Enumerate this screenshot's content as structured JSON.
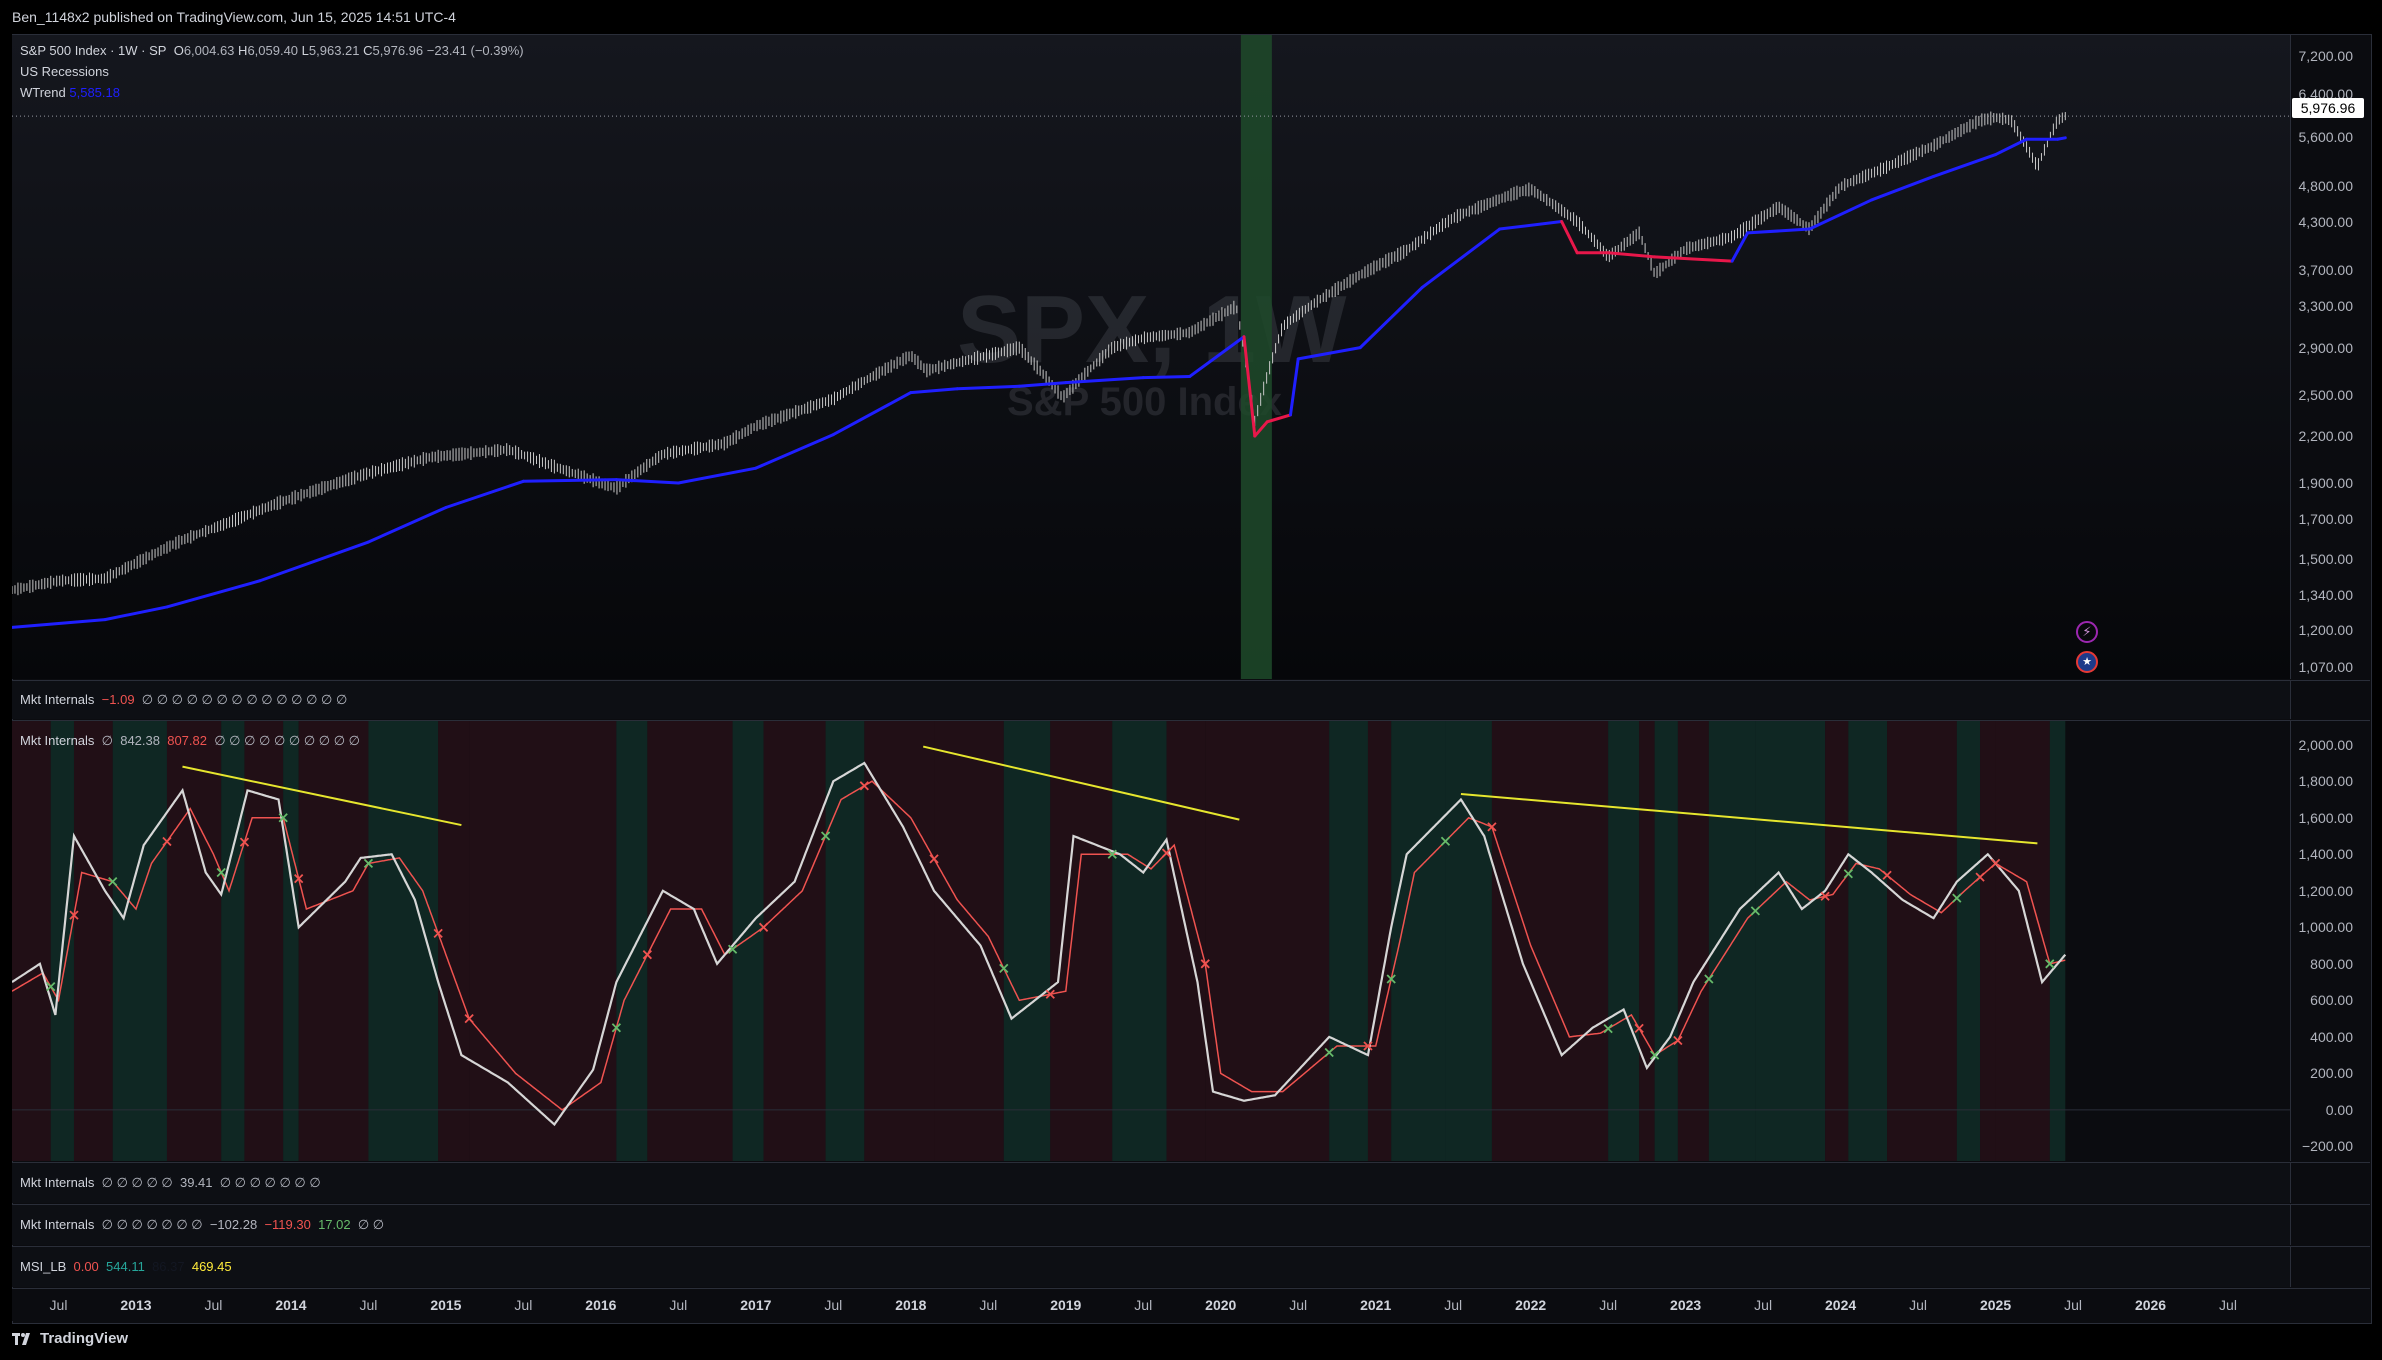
{
  "header": {
    "published": "Ben_1148x2 published on TradingView.com, Jun 15, 2025 14:51 UTC-4"
  },
  "main_legend": {
    "symbol": "S&P 500 Index · 1W · SP",
    "o_label": "O",
    "o": "6,004.63",
    "h_label": "H",
    "h": "6,059.40",
    "l_label": "L",
    "l": "5,963.21",
    "c_label": "C",
    "c": "5,976.96",
    "change": "−23.41 (−0.39%)",
    "recessions": "US Recessions",
    "wtrend_label": "WTrend",
    "wtrend_value": "5,585.18"
  },
  "watermark": {
    "ticker": "SPX, 1W",
    "name": "S&P 500 Index"
  },
  "price_badge": "5,976.96",
  "icons": {
    "flash": "lightning-icon",
    "flag": "us-flag-icon"
  },
  "colors": {
    "price_bars": "#c8c8c8",
    "wtrend_up": "#1f1fff",
    "wtrend_down": "#e8174a",
    "recession": "#1f4a2a",
    "osc_white": "#d6d6d6",
    "osc_red": "#ef5350",
    "trendline": "#e6e62e",
    "bull_bg": "#12302a",
    "bear_bg": "#2a1018"
  },
  "panes": {
    "mkt1": {
      "title": "Mkt Internals",
      "value": "−1.09",
      "nulls": "∅ ∅ ∅ ∅ ∅ ∅ ∅ ∅ ∅ ∅ ∅ ∅ ∅ ∅"
    },
    "mkt2": {
      "title": "Mkt Internals",
      "pre": "∅",
      "v1": "842.38",
      "v2": "807.82",
      "nulls": "∅ ∅ ∅ ∅ ∅ ∅ ∅ ∅ ∅ ∅"
    },
    "mkt3": {
      "title": "Mkt Internals",
      "pre": "∅ ∅ ∅ ∅ ∅",
      "v1": "39.41",
      "nulls": "∅ ∅ ∅ ∅ ∅ ∅ ∅"
    },
    "mkt4": {
      "title": "Mkt Internals",
      "pre": "∅ ∅ ∅ ∅ ∅ ∅ ∅",
      "v1": "−102.28",
      "v2": "−119.30",
      "v3": "17.02",
      "nulls": "∅ ∅"
    },
    "msi": {
      "title": "MSI_LB",
      "v1": "0.00",
      "v2": "544.11",
      "v3": "86.37",
      "v4": "469.45"
    }
  },
  "footer": {
    "brand": "TradingView"
  },
  "chart_data": [
    {
      "type": "line",
      "title": "S&P 500 Index · 1W · SP",
      "scale": "log",
      "yticks": [
        "7,200.00",
        "6,400.00",
        "5,600.00",
        "4,800.00",
        "4,300.00",
        "3,700.00",
        "3,300.00",
        "2,900.00",
        "2,500.00",
        "2,200.00",
        "1,900.00",
        "1,700.00",
        "1,500.00",
        "1,340.00",
        "1,200.00",
        "1,070.00"
      ],
      "ytick_values": [
        7200,
        6400,
        5600,
        4800,
        4300,
        3700,
        3300,
        2900,
        2500,
        2200,
        1900,
        1700,
        1500,
        1340,
        1200,
        1070
      ],
      "ylim": [
        1030,
        7700
      ],
      "xlim": [
        2012.2,
        2026.9
      ],
      "recession": [
        2020.13,
        2020.33
      ],
      "series": [
        {
          "name": "S&P 500 Index",
          "x": [
            2012.2,
            2012.5,
            2012.8,
            2013.0,
            2013.3,
            2013.6,
            2013.9,
            2014.1,
            2014.5,
            2014.9,
            2015.4,
            2015.7,
            2016.0,
            2016.1,
            2016.4,
            2016.8,
            2017.0,
            2017.5,
            2018.0,
            2018.1,
            2018.7,
            2018.98,
            2019.3,
            2019.5,
            2019.8,
            2020.1,
            2020.22,
            2020.4,
            2020.6,
            2020.9,
            2021.2,
            2021.5,
            2021.9,
            2022.0,
            2022.3,
            2022.5,
            2022.7,
            2022.8,
            2023.0,
            2023.3,
            2023.6,
            2023.8,
            2024.0,
            2024.3,
            2024.6,
            2024.9,
            2025.0,
            2025.1,
            2025.27,
            2025.4,
            2025.45
          ],
          "y": [
            1360,
            1400,
            1410,
            1480,
            1590,
            1680,
            1780,
            1840,
            1960,
            2060,
            2110,
            2000,
            1900,
            1870,
            2080,
            2150,
            2270,
            2470,
            2830,
            2700,
            2900,
            2480,
            2900,
            2990,
            3040,
            3300,
            2300,
            3100,
            3330,
            3640,
            3930,
            4350,
            4700,
            4760,
            4300,
            3850,
            4150,
            3650,
            3950,
            4100,
            4500,
            4200,
            4800,
            5100,
            5450,
            5900,
            5950,
            5900,
            5100,
            5900,
            5976.96
          ]
        },
        {
          "name": "WTrend",
          "x": [
            2012.2,
            2012.8,
            2013.2,
            2013.8,
            2014.5,
            2015.0,
            2015.5,
            2016.1,
            2016.5,
            2017.0,
            2017.5,
            2018.0,
            2018.3,
            2018.7,
            2019.0,
            2019.5,
            2019.8,
            2020.15,
            2020.22,
            2020.3,
            2020.45,
            2020.5,
            2020.9,
            2021.3,
            2021.8,
            2022.2,
            2022.3,
            2022.5,
            2022.8,
            2023.3,
            2023.4,
            2023.8,
            2024.2,
            2024.6,
            2025.0,
            2025.2,
            2025.4,
            2025.45
          ],
          "y": [
            1210,
            1240,
            1290,
            1400,
            1580,
            1760,
            1910,
            1920,
            1900,
            1990,
            2210,
            2520,
            2550,
            2570,
            2600,
            2640,
            2650,
            3000,
            2200,
            2300,
            2350,
            2800,
            2900,
            3500,
            4200,
            4300,
            3900,
            3900,
            3850,
            3800,
            4150,
            4200,
            4600,
            4950,
            5300,
            5560,
            5560,
            5585.18
          ]
        }
      ]
    },
    {
      "type": "line",
      "title": "Mkt Internals",
      "yticks": [
        "2,000.00",
        "1,800.00",
        "1,600.00",
        "1,400.00",
        "1,200.00",
        "1,000.00",
        "800.00",
        "600.00",
        "400.00",
        "200.00",
        "0.00",
        "−200.00"
      ],
      "ytick_values": [
        2000,
        1800,
        1600,
        1400,
        1200,
        1000,
        800,
        600,
        400,
        200,
        0,
        -200
      ],
      "ylim": [
        -280,
        2130
      ],
      "xlim": [
        2012.2,
        2026.9
      ],
      "series": [
        {
          "name": "",
          "x": [
            2012.2,
            2012.38,
            2012.48,
            2012.6,
            2012.8,
            2012.92,
            2013.05,
            2013.3,
            2013.45,
            2013.55,
            2013.72,
            2013.92,
            2014.05,
            2014.35,
            2014.45,
            2014.65,
            2014.8,
            2014.95,
            2015.1,
            2015.4,
            2015.7,
            2015.95,
            2016.1,
            2016.4,
            2016.6,
            2016.75,
            2017.0,
            2017.25,
            2017.5,
            2017.7,
            2017.95,
            2018.15,
            2018.25,
            2018.45,
            2018.65,
            2018.95,
            2019.05,
            2019.35,
            2019.5,
            2019.65,
            2019.85,
            2019.95,
            2020.15,
            2020.35,
            2020.7,
            2020.95,
            2021.1,
            2021.2,
            2021.55,
            2021.7,
            2021.95,
            2022.2,
            2022.4,
            2022.6,
            2022.75,
            2022.9,
            2023.05,
            2023.35,
            2023.6,
            2023.75,
            2023.9,
            2024.05,
            2024.2,
            2024.4,
            2024.6,
            2024.75,
            2024.95,
            2025.15,
            2025.3,
            2025.45
          ],
          "y": [
            700,
            800,
            520,
            1500,
            1200,
            1050,
            1450,
            1750,
            1300,
            1180,
            1750,
            1700,
            1000,
            1250,
            1380,
            1400,
            1150,
            700,
            300,
            150,
            -80,
            220,
            700,
            1200,
            1100,
            800,
            1050,
            1250,
            1800,
            1900,
            1550,
            1200,
            1100,
            900,
            500,
            700,
            1500,
            1400,
            1300,
            1480,
            700,
            100,
            50,
            80,
            400,
            300,
            1000,
            1400,
            1700,
            1500,
            800,
            300,
            450,
            550,
            230,
            400,
            700,
            1100,
            1300,
            1100,
            1200,
            1400,
            1300,
            1150,
            1050,
            1250,
            1400,
            1200,
            700,
            850
          ]
        },
        {
          "name": "",
          "x": [
            2012.2,
            2012.4,
            2012.5,
            2012.65,
            2012.85,
            2013.0,
            2013.1,
            2013.35,
            2013.5,
            2013.6,
            2013.75,
            2013.95,
            2014.1,
            2014.4,
            2014.5,
            2014.7,
            2014.85,
            2015.0,
            2015.15,
            2015.45,
            2015.75,
            2016.0,
            2016.15,
            2016.45,
            2016.65,
            2016.8,
            2017.05,
            2017.3,
            2017.55,
            2017.75,
            2018.0,
            2018.2,
            2018.3,
            2018.5,
            2018.7,
            2019.0,
            2019.1,
            2019.4,
            2019.55,
            2019.7,
            2019.9,
            2020.0,
            2020.2,
            2020.4,
            2020.75,
            2021.0,
            2021.15,
            2021.25,
            2021.6,
            2021.75,
            2022.0,
            2022.25,
            2022.45,
            2022.65,
            2022.8,
            2022.95,
            2023.1,
            2023.4,
            2023.65,
            2023.8,
            2023.95,
            2024.1,
            2024.25,
            2024.45,
            2024.65,
            2024.8,
            2025.0,
            2025.2,
            2025.35,
            2025.45
          ],
          "y": [
            650,
            750,
            600,
            1300,
            1250,
            1100,
            1350,
            1650,
            1400,
            1200,
            1600,
            1600,
            1100,
            1200,
            1350,
            1380,
            1200,
            850,
            500,
            200,
            0,
            150,
            600,
            1100,
            1100,
            850,
            1000,
            1200,
            1700,
            1800,
            1600,
            1300,
            1150,
            950,
            600,
            650,
            1400,
            1400,
            1320,
            1450,
            800,
            200,
            100,
            100,
            350,
            350,
            900,
            1300,
            1600,
            1550,
            900,
            400,
            420,
            520,
            300,
            380,
            650,
            1050,
            1250,
            1150,
            1180,
            1350,
            1320,
            1180,
            1080,
            1200,
            1350,
            1250,
            800,
            820
          ]
        }
      ]
    }
  ],
  "xaxis": {
    "labels": [
      "Jul",
      "2013",
      "Jul",
      "2014",
      "Jul",
      "2015",
      "Jul",
      "2016",
      "Jul",
      "2017",
      "Jul",
      "2018",
      "Jul",
      "2019",
      "Jul",
      "2020",
      "Jul",
      "2021",
      "Jul",
      "2022",
      "Jul",
      "2023",
      "Jul",
      "2024",
      "Jul",
      "2025",
      "Jul",
      "2026",
      "Jul"
    ],
    "values": [
      2012.5,
      2013.0,
      2013.5,
      2014.0,
      2014.5,
      2015.0,
      2015.5,
      2016.0,
      2016.5,
      2017.0,
      2017.5,
      2018.0,
      2018.5,
      2019.0,
      2019.5,
      2020.0,
      2020.5,
      2021.0,
      2021.5,
      2022.0,
      2022.5,
      2023.0,
      2023.5,
      2024.0,
      2024.5,
      2025.0,
      2025.5,
      2026.0,
      2026.5
    ]
  },
  "regime_bands": {
    "x": [
      2012.2,
      2012.45,
      2012.6,
      2012.85,
      2013.2,
      2013.55,
      2013.7,
      2013.95,
      2014.05,
      2014.5,
      2014.95,
      2015.15,
      2016.1,
      2016.3,
      2016.85,
      2017.05,
      2017.45,
      2017.7,
      2018.15,
      2018.6,
      2018.9,
      2019.3,
      2019.65,
      2019.9,
      2020.7,
      2020.95,
      2021.1,
      2021.45,
      2021.75,
      2022.5,
      2022.7,
      2022.8,
      2022.95,
      2023.15,
      2023.45,
      2023.9,
      2024.05,
      2024.3,
      2024.75,
      2024.9,
      2025.0,
      2025.35,
      2025.45
    ],
    "bull": [
      0,
      1,
      0,
      1,
      0,
      1,
      0,
      1,
      0,
      1,
      0,
      0,
      1,
      0,
      1,
      0,
      1,
      0,
      0,
      1,
      0,
      1,
      0,
      0,
      1,
      0,
      1,
      1,
      0,
      1,
      0,
      1,
      0,
      1,
      1,
      0,
      1,
      0,
      1,
      0,
      0,
      1
    ]
  },
  "trendlines": [
    {
      "x": [
        2013.3,
        2015.1
      ],
      "y": [
        1880,
        1560
      ]
    },
    {
      "x": [
        2018.08,
        2020.12
      ],
      "y": [
        1990,
        1590
      ]
    },
    {
      "x": [
        2021.55,
        2025.27
      ],
      "y": [
        1730,
        1460
      ]
    }
  ]
}
